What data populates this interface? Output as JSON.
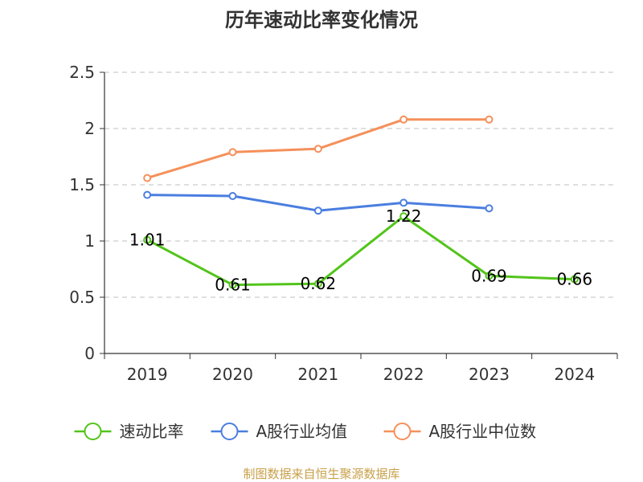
{
  "chart_data": {
    "type": "line",
    "title": "历年速动比率变化情况",
    "categories": [
      "2019",
      "2020",
      "2021",
      "2022",
      "2023",
      "2024"
    ],
    "ylim": [
      0,
      2.5
    ],
    "yticks": [
      "0",
      "0.5",
      "1",
      "1.5",
      "2",
      "2.5"
    ],
    "grid": true,
    "legend_position": "bottom",
    "series": [
      {
        "name": "速动比率",
        "color": "#52c41a",
        "values": [
          1.01,
          0.61,
          0.62,
          1.22,
          0.69,
          0.66
        ],
        "labels": [
          "1.01",
          "0.61",
          "0.62",
          "1.22",
          "0.69",
          "0.66"
        ]
      },
      {
        "name": "A股行业均值",
        "color": "#4a7ee0",
        "values": [
          1.41,
          1.4,
          1.27,
          1.34,
          1.29,
          null
        ]
      },
      {
        "name": "A股行业中位数",
        "color": "#f5905a",
        "values": [
          1.56,
          1.79,
          1.82,
          2.08,
          2.08,
          null
        ]
      }
    ]
  },
  "footer": {
    "source": "制图数据来自恒生聚源数据库"
  }
}
